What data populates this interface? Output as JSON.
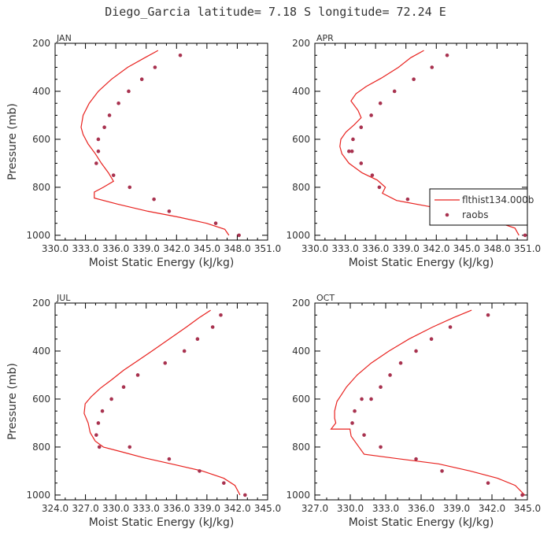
{
  "title": "Diego_Garcia  latitude= 7.18 S longitude= 72.24 E",
  "colors": {
    "model": "#e8221f",
    "obs": "#a8324f",
    "axis": "#000000"
  },
  "legend": {
    "model_label": "flthist134.000b",
    "obs_label": "raobs"
  },
  "chart_data": [
    {
      "type": "line",
      "panel": "JAN",
      "xlabel": "Moist Static Energy (kJ/kg)",
      "ylabel": "Pressure (mb)",
      "xlim": [
        330.03,
        351.03
      ],
      "ylim": [
        1020,
        200
      ],
      "xticks": [
        330.03,
        333.03,
        336.03,
        339.03,
        342.03,
        345.03,
        348.03,
        351.03
      ],
      "xticklabels": [
        "330.0",
        "333.0",
        "336.0",
        "339.0",
        "342.0",
        "345.0",
        "348.0",
        "351.0"
      ],
      "yticks": [
        200,
        400,
        600,
        800,
        1000
      ],
      "series": [
        {
          "name": "flthist134.000b",
          "kind": "line",
          "x": [
            340.2,
            338.9,
            337.2,
            335.6,
            334.3,
            333.4,
            332.8,
            332.6,
            332.8,
            333.3,
            334.0,
            334.6,
            335.3,
            335.8,
            334.8,
            333.9,
            333.9,
            336.2,
            339.2,
            342.3,
            345.0,
            346.8,
            347.2
          ],
          "y": [
            230,
            260,
            300,
            350,
            400,
            450,
            500,
            550,
            580,
            620,
            660,
            700,
            740,
            775,
            800,
            820,
            845,
            870,
            900,
            925,
            950,
            975,
            1000
          ]
        },
        {
          "name": "raobs",
          "kind": "scatter",
          "x": [
            342.4,
            339.9,
            338.6,
            337.3,
            336.3,
            335.4,
            334.9,
            334.3,
            334.3,
            334.1,
            335.8,
            337.4,
            339.8,
            341.3,
            345.9,
            348.2
          ],
          "y": [
            250,
            300,
            350,
            400,
            450,
            500,
            550,
            600,
            650,
            700,
            750,
            800,
            850,
            900,
            950,
            1000
          ]
        }
      ]
    },
    {
      "type": "line",
      "panel": "APR",
      "xlabel": "Moist Static Energy (kJ/kg)",
      "ylabel": "",
      "xlim": [
        330.03,
        351.03
      ],
      "ylim": [
        1020,
        200
      ],
      "xticks": [
        330.03,
        333.03,
        336.03,
        339.03,
        342.03,
        345.03,
        348.03,
        351.03
      ],
      "xticklabels": [
        "330.0",
        "333.0",
        "336.0",
        "339.0",
        "342.0",
        "345.0",
        "348.0",
        "351.0"
      ],
      "yticks": [
        200,
        400,
        600,
        800,
        1000
      ],
      "series": [
        {
          "name": "flthist134.000b",
          "kind": "line",
          "x": [
            340.8,
            339.5,
            338.3,
            336.6,
            335.1,
            334.1,
            333.6,
            334.3,
            334.6,
            333.9,
            333.1,
            332.6,
            332.5,
            332.7,
            333.4,
            334.7,
            336.2,
            337.0,
            336.7,
            338.1,
            341.3,
            344.5,
            347.3,
            349.8,
            350.2
          ],
          "y": [
            230,
            260,
            300,
            345,
            380,
            410,
            440,
            480,
            510,
            540,
            570,
            600,
            630,
            660,
            700,
            740,
            770,
            800,
            825,
            855,
            880,
            905,
            935,
            970,
            1000
          ]
        },
        {
          "name": "raobs",
          "kind": "scatter",
          "x": [
            343.1,
            341.6,
            339.8,
            337.9,
            336.5,
            335.6,
            334.6,
            333.8,
            333.4,
            333.7,
            334.6,
            335.7,
            336.4,
            339.2,
            343.1,
            347.9,
            350.8
          ],
          "y": [
            250,
            300,
            350,
            400,
            450,
            500,
            550,
            600,
            650,
            650,
            700,
            750,
            800,
            850,
            900,
            950,
            1000
          ]
        }
      ]
    },
    {
      "type": "line",
      "panel": "JUL",
      "xlabel": "Moist Static Energy (kJ/kg)",
      "ylabel": "Pressure (mb)",
      "xlim": [
        324.03,
        345.03
      ],
      "ylim": [
        1020,
        200
      ],
      "xticks": [
        324.03,
        327.03,
        330.03,
        333.03,
        336.03,
        339.03,
        342.03,
        345.03
      ],
      "xticklabels": [
        "324.0",
        "327.0",
        "330.0",
        "333.0",
        "336.0",
        "339.0",
        "342.0",
        "345.0"
      ],
      "yticks": [
        200,
        400,
        600,
        800,
        1000
      ],
      "series": [
        {
          "name": "flthist134.000b",
          "kind": "line",
          "x": [
            339.4,
            338.3,
            337.0,
            335.3,
            333.6,
            332.2,
            330.8,
            329.6,
            328.5,
            327.6,
            327.0,
            326.9,
            327.3,
            327.5,
            328.0,
            328.8,
            330.6,
            332.8,
            335.5,
            338.6,
            340.7,
            341.8,
            342.3
          ],
          "y": [
            230,
            260,
            300,
            350,
            400,
            440,
            480,
            520,
            555,
            590,
            620,
            660,
            700,
            740,
            775,
            800,
            820,
            845,
            870,
            900,
            930,
            960,
            1000
          ]
        },
        {
          "name": "raobs",
          "kind": "scatter",
          "x": [
            340.4,
            339.6,
            338.1,
            336.8,
            334.9,
            332.2,
            330.8,
            329.6,
            328.7,
            328.3,
            328.1,
            328.4,
            331.4,
            335.3,
            338.3,
            340.7,
            342.8
          ],
          "y": [
            250,
            300,
            350,
            400,
            450,
            500,
            550,
            600,
            650,
            700,
            750,
            800,
            800,
            850,
            900,
            950,
            1000
          ]
        }
      ]
    },
    {
      "type": "line",
      "panel": "OCT",
      "xlabel": "Moist Static Energy (kJ/kg)",
      "ylabel": "",
      "xlim": [
        327.03,
        345.03
      ],
      "ylim": [
        1020,
        200
      ],
      "xticks": [
        327.03,
        330.03,
        333.03,
        336.03,
        339.03,
        342.03,
        345.03
      ],
      "xticklabels": [
        "327.0",
        "330.0",
        "333.0",
        "336.0",
        "339.0",
        "342.0",
        "345.0"
      ],
      "yticks": [
        200,
        400,
        600,
        800,
        1000
      ],
      "series": [
        {
          "name": "flthist134.000b",
          "kind": "line",
          "x": [
            340.3,
            338.8,
            337.0,
            335.0,
            333.3,
            331.8,
            330.6,
            329.7,
            329.3,
            328.9,
            328.7,
            328.7,
            328.8,
            328.4,
            330.0,
            330.1,
            331.2,
            334.3,
            337.5,
            340.2,
            342.5,
            344.0,
            344.8
          ],
          "y": [
            230,
            260,
            300,
            350,
            400,
            450,
            500,
            550,
            580,
            610,
            650,
            680,
            700,
            725,
            725,
            755,
            830,
            850,
            870,
            900,
            930,
            960,
            1000
          ]
        },
        {
          "name": "raobs",
          "kind": "scatter",
          "x": [
            341.7,
            338.5,
            336.9,
            335.6,
            334.3,
            333.4,
            332.6,
            331.8,
            331.0,
            330.4,
            330.2,
            331.2,
            332.6,
            335.6,
            337.8,
            341.7,
            344.6
          ],
          "y": [
            250,
            300,
            350,
            400,
            450,
            500,
            550,
            600,
            600,
            650,
            700,
            750,
            800,
            850,
            900,
            950,
            1000
          ]
        }
      ]
    }
  ]
}
